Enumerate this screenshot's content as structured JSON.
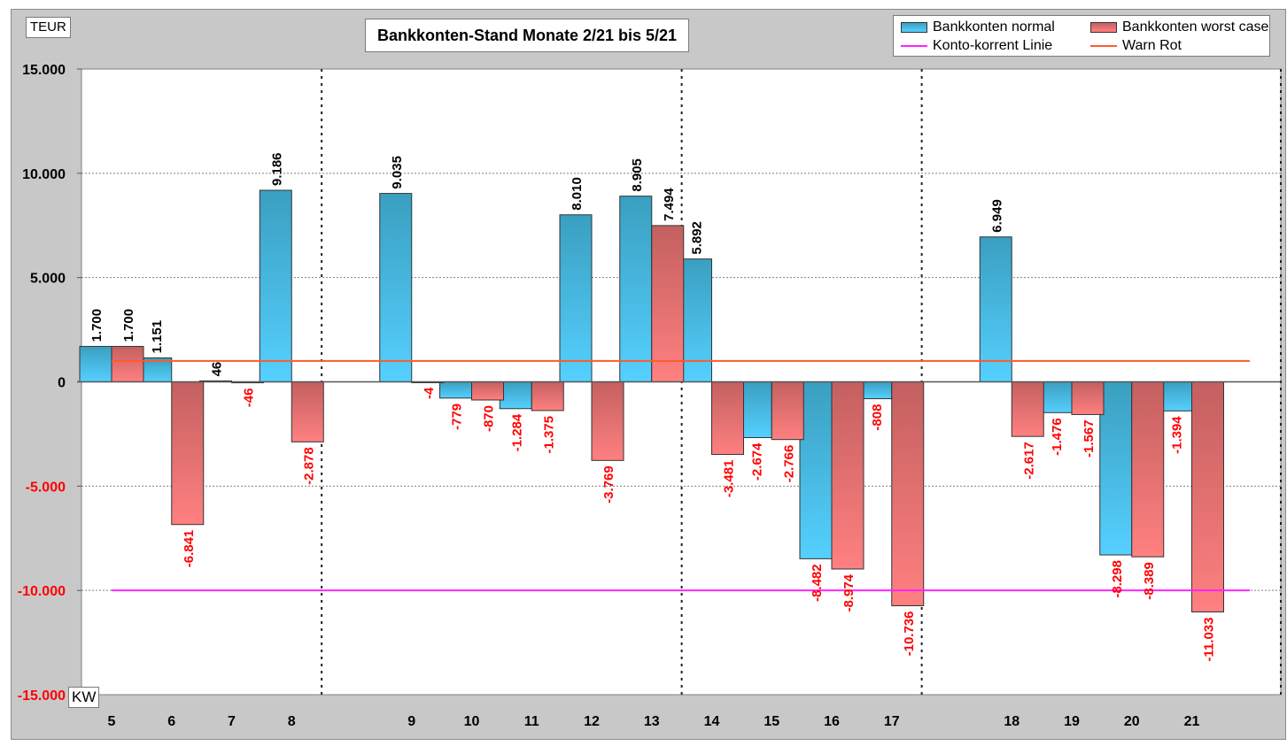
{
  "chart_data": {
    "type": "bar",
    "title": "Bankkonten-Stand  Monate 2/21 bis 5/21",
    "ylabel": "TEUR",
    "xlabel": "KW",
    "ylim": [
      -15000,
      15000
    ],
    "yticks": [
      15000,
      10000,
      5000,
      0,
      -5000,
      -10000,
      -15000
    ],
    "ytick_labels": [
      "15.000",
      "10.000",
      "5.000",
      "0",
      "-5.000",
      "-10.000",
      "-15.000"
    ],
    "ytick_colors": [
      "#000000",
      "#000000",
      "#000000",
      "#000000",
      "#ff0000",
      "#ff0000",
      "#ff0000"
    ],
    "grid": "horizontal dotted",
    "categories": [
      "5",
      "6",
      "7",
      "8",
      "",
      "9",
      "10",
      "11",
      "12",
      "13",
      "14",
      "15",
      "16",
      "17",
      "",
      "18",
      "19",
      "20",
      "21"
    ],
    "month_separators_after": [
      "8",
      "13",
      "17",
      "21"
    ],
    "series": [
      {
        "name": "Bankkonten normal",
        "color_top": "#3a9fc0",
        "color_bottom": "#55d0ff",
        "values": [
          1700,
          1151,
          46,
          9186,
          null,
          9035,
          -779,
          -1284,
          8010,
          8905,
          5892,
          -2674,
          -8482,
          -808,
          null,
          6949,
          -1476,
          -8298,
          -1394
        ],
        "labels": [
          "1.700",
          "1.151",
          "46",
          "9.186",
          "",
          "9.035",
          "-779",
          "-1.284",
          "8.010",
          "8.905",
          "5.892",
          "-2.674",
          "-8.482",
          "-808",
          "",
          "6.949",
          "-1.476",
          "-8.298",
          "-1.394"
        ]
      },
      {
        "name": "Bankkonten worst case",
        "color_top": "#c46060",
        "color_bottom": "#ff8080",
        "values": [
          1700,
          -6841,
          -46,
          -2878,
          null,
          -4,
          -870,
          -1375,
          -3769,
          7494,
          -3481,
          -2766,
          -8974,
          -10736,
          null,
          -2617,
          -1567,
          -8389,
          -11033
        ],
        "labels": [
          "1.700",
          "-6.841",
          "-46",
          "-2.878",
          "",
          "-4",
          "-870",
          "-1.375",
          "-3.769",
          "7.494",
          "-3.481",
          "-2.766",
          "-8.974",
          "-10.736",
          "",
          "-2.617",
          "-1.567",
          "-8.389",
          "-11.033"
        ]
      }
    ],
    "lines": [
      {
        "name": "Konto-korrent Linie",
        "value": -10000,
        "color": "#ff22ff"
      },
      {
        "name": "Warn Rot",
        "value": 1000,
        "color": "#ff5a2a"
      }
    ],
    "label_colors": {
      "positive": "#000000",
      "negative": "#ff0000"
    },
    "legend": {
      "position": "top-right",
      "entries": [
        {
          "label": "Bankkonten normal",
          "kind": "bar",
          "color": "#3fb4dc"
        },
        {
          "label": "Bankkonten worst case",
          "kind": "bar",
          "color": "#e07070"
        },
        {
          "label": "Konto-korrent Linie",
          "kind": "line",
          "color": "#ff22ff"
        },
        {
          "label": "Warn Rot",
          "kind": "line",
          "color": "#ff5a2a"
        }
      ]
    }
  }
}
